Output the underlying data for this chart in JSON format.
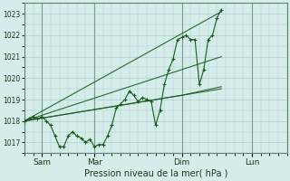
{
  "xlabel": "Pression niveau de la mer( hPa )",
  "bg_color": "#d4ecea",
  "line_color": "#1a5c1a",
  "ylim": [
    1016.5,
    1023.5
  ],
  "yticks": [
    1017,
    1018,
    1019,
    1020,
    1021,
    1022,
    1023
  ],
  "grid_color": "#b0cccc",
  "xlim": [
    0,
    120
  ],
  "xtick_positions": [
    8,
    32,
    72,
    104
  ],
  "xtick_labels": [
    "Sam",
    "Mar",
    "Dim",
    "Lun"
  ],
  "vline_positions": [
    0,
    8,
    32,
    72,
    104
  ],
  "main_line": [
    [
      0,
      1018.0
    ],
    [
      2,
      1018.1
    ],
    [
      4,
      1018.2
    ],
    [
      6,
      1018.1
    ],
    [
      8,
      1018.2
    ],
    [
      10,
      1018.0
    ],
    [
      12,
      1017.8
    ],
    [
      14,
      1017.3
    ],
    [
      16,
      1016.8
    ],
    [
      18,
      1016.8
    ],
    [
      20,
      1017.3
    ],
    [
      22,
      1017.5
    ],
    [
      24,
      1017.3
    ],
    [
      26,
      1017.2
    ],
    [
      28,
      1017.0
    ],
    [
      30,
      1017.15
    ],
    [
      32,
      1016.8
    ],
    [
      34,
      1016.9
    ],
    [
      36,
      1016.9
    ],
    [
      38,
      1017.3
    ],
    [
      40,
      1017.8
    ],
    [
      42,
      1018.6
    ],
    [
      44,
      1018.8
    ],
    [
      46,
      1019.0
    ],
    [
      48,
      1019.4
    ],
    [
      50,
      1019.2
    ],
    [
      52,
      1018.9
    ],
    [
      54,
      1019.1
    ],
    [
      56,
      1019.0
    ],
    [
      58,
      1018.9
    ],
    [
      60,
      1017.8
    ],
    [
      62,
      1018.5
    ],
    [
      64,
      1019.7
    ],
    [
      66,
      1020.4
    ],
    [
      68,
      1020.9
    ],
    [
      70,
      1021.8
    ],
    [
      72,
      1021.9
    ],
    [
      74,
      1022.0
    ],
    [
      76,
      1021.8
    ],
    [
      78,
      1021.8
    ],
    [
      80,
      1019.7
    ],
    [
      82,
      1020.4
    ],
    [
      84,
      1021.8
    ],
    [
      86,
      1022.0
    ],
    [
      88,
      1022.8
    ],
    [
      90,
      1023.2
    ]
  ],
  "ensemble_lines": [
    [
      [
        0,
        1018.0
      ],
      [
        90,
        1019.5
      ]
    ],
    [
      [
        0,
        1018.0
      ],
      [
        90,
        1021.0
      ]
    ],
    [
      [
        0,
        1018.0
      ],
      [
        90,
        1023.1
      ]
    ],
    [
      [
        0,
        1018.0
      ],
      [
        48,
        1018.8
      ],
      [
        60,
        1019.0
      ],
      [
        72,
        1019.2
      ],
      [
        90,
        1019.6
      ]
    ]
  ]
}
